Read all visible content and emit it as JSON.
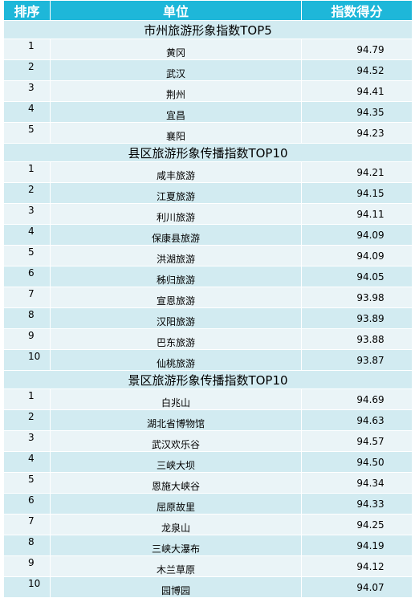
{
  "header": {
    "rank": "排序",
    "unit": "单位",
    "score": "指数得分"
  },
  "sections": [
    {
      "title": "市州旅游形象指数TOP5",
      "rows": [
        {
          "rank": "1",
          "name": "黄冈",
          "score": "94.79"
        },
        {
          "rank": "2",
          "name": "武汉",
          "score": "94.52"
        },
        {
          "rank": "3",
          "name": "荆州",
          "score": "94.41"
        },
        {
          "rank": "4",
          "name": "宜昌",
          "score": "94.35"
        },
        {
          "rank": "5",
          "name": "襄阳",
          "score": "94.23"
        }
      ]
    },
    {
      "title": "县区旅游形象传播指数TOP10",
      "rows": [
        {
          "rank": "1",
          "name": "咸丰旅游",
          "score": "94.21"
        },
        {
          "rank": "2",
          "name": "江夏旅游",
          "score": "94.15"
        },
        {
          "rank": "3",
          "name": "利川旅游",
          "score": "94.11"
        },
        {
          "rank": "4",
          "name": "保康县旅游",
          "score": "94.09"
        },
        {
          "rank": "5",
          "name": "洪湖旅游",
          "score": "94.09"
        },
        {
          "rank": "6",
          "name": "秭归旅游",
          "score": "94.05"
        },
        {
          "rank": "7",
          "name": "宣恩旅游",
          "score": "93.98"
        },
        {
          "rank": "8",
          "name": "汉阳旅游",
          "score": "93.89"
        },
        {
          "rank": "9",
          "name": "巴东旅游",
          "score": "93.88"
        },
        {
          "rank": "10",
          "name": "仙桃旅游",
          "score": "93.87"
        }
      ]
    },
    {
      "title": "景区旅游形象传播指数TOP10",
      "rows": [
        {
          "rank": "1",
          "name": "白兆山",
          "score": "94.69"
        },
        {
          "rank": "2",
          "name": "湖北省博物馆",
          "score": "94.63"
        },
        {
          "rank": "3",
          "name": "武汉欢乐谷",
          "score": "94.57"
        },
        {
          "rank": "4",
          "name": "三峡大坝",
          "score": "94.50"
        },
        {
          "rank": "5",
          "name": "恩施大峡谷",
          "score": "94.34"
        },
        {
          "rank": "6",
          "name": "屈原故里",
          "score": "94.33"
        },
        {
          "rank": "7",
          "name": "龙泉山",
          "score": "94.25"
        },
        {
          "rank": "8",
          "name": "三峡大瀑布",
          "score": "94.19"
        },
        {
          "rank": "9",
          "name": "木兰草原",
          "score": "94.12"
        },
        {
          "rank": "10",
          "name": "园博园",
          "score": "94.07"
        }
      ]
    }
  ]
}
